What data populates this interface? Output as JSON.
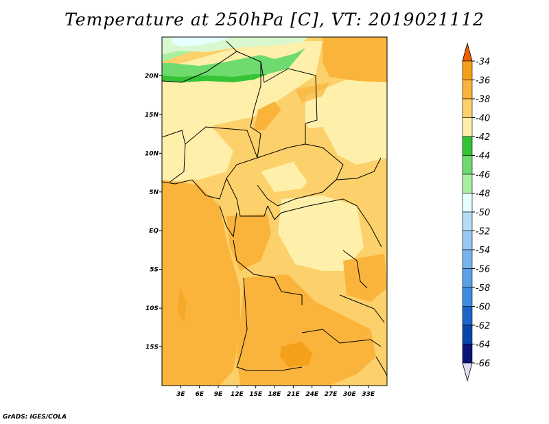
{
  "title": "Temperature at 250hPa [C], VT: 2019021112",
  "credit": "GrADS: IGES/COLA",
  "map": {
    "lon_range": [
      0,
      36
    ],
    "lat_range": [
      -20,
      25
    ],
    "lon_ticks": [
      {
        "value": 3,
        "label": "3E"
      },
      {
        "value": 6,
        "label": "6E"
      },
      {
        "value": 9,
        "label": "9E"
      },
      {
        "value": 12,
        "label": "12E"
      },
      {
        "value": 15,
        "label": "15E"
      },
      {
        "value": 18,
        "label": "18E"
      },
      {
        "value": 21,
        "label": "21E"
      },
      {
        "value": 24,
        "label": "24E"
      },
      {
        "value": 27,
        "label": "27E"
      },
      {
        "value": 30,
        "label": "30E"
      },
      {
        "value": 33,
        "label": "33E"
      }
    ],
    "lat_ticks": [
      {
        "value": 20,
        "label": "20N"
      },
      {
        "value": 15,
        "label": "15N"
      },
      {
        "value": 10,
        "label": "10N"
      },
      {
        "value": 5,
        "label": "5N"
      },
      {
        "value": 0,
        "label": "EQ"
      },
      {
        "value": -5,
        "label": "5S"
      },
      {
        "value": -10,
        "label": "10S"
      },
      {
        "value": -15,
        "label": "15S"
      }
    ],
    "field_colors": {
      "c36": "#f5a01a",
      "c38": "#fab43c",
      "c40": "#fcd06a",
      "c42": "#fef0aa",
      "c44": "#34c334",
      "c46": "#6fdb6f",
      "c48": "#a8f0a0",
      "c50": "#d9f8d0",
      "c52": "#e6ffff"
    }
  },
  "colorbar": {
    "levels": [
      "-34",
      "-36",
      "-38",
      "-40",
      "-42",
      "-44",
      "-46",
      "-48",
      "-50",
      "-52",
      "-54",
      "-56",
      "-58",
      "-60",
      "-62",
      "-64",
      "-66"
    ],
    "colors": [
      "#f06000",
      "#f5a01a",
      "#fab43c",
      "#fcd06a",
      "#fef0aa",
      "#34c334",
      "#6fdb6f",
      "#a8f0a0",
      "#e6ffff",
      "#b4dcf5",
      "#96c8f0",
      "#78b4eb",
      "#5aa0e6",
      "#3c8ce1",
      "#1e64c8",
      "#0a46aa",
      "#0a1478",
      "#dcdcf5"
    ]
  }
}
